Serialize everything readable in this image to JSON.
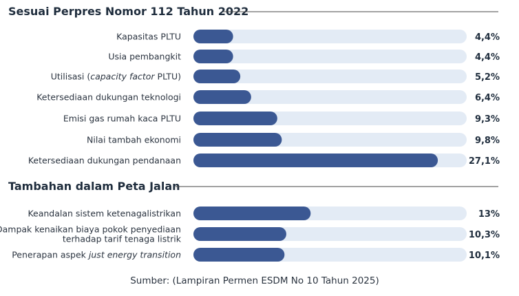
{
  "chart_data": {
    "type": "bar",
    "orientation": "horizontal",
    "unit": "%",
    "colors": {
      "bar": "#3b5893",
      "track": "#e3ebf5",
      "rule": "#444444"
    },
    "sections": [
      {
        "title": "Sesuai Perpres Nomor 112 Tahun 2022",
        "items": [
          {
            "label": [
              "Kapasitas PLTU"
            ],
            "value": 4.4,
            "display": "4,4%"
          },
          {
            "label": [
              "Usia pembangkit"
            ],
            "value": 4.4,
            "display": "4,4%"
          },
          {
            "label": [
              "Utilisasi (capacity factor PLTU)"
            ],
            "value": 5.2,
            "display": "5,2%"
          },
          {
            "label": [
              "Ketersediaan dukungan teknologi"
            ],
            "value": 6.4,
            "display": "6,4%"
          },
          {
            "label": [
              "Emisi gas rumah kaca PLTU"
            ],
            "value": 9.3,
            "display": "9,3%"
          },
          {
            "label": [
              "Nilai tambah ekonomi"
            ],
            "value": 9.8,
            "display": "9,8%"
          },
          {
            "label": [
              "Ketersediaan dukungan pendanaan"
            ],
            "value": 27.1,
            "display": "27,1%"
          }
        ]
      },
      {
        "title": "Tambahan dalam Peta Jalan",
        "items": [
          {
            "label": [
              "Keandalan sistem ketenagalistrikan"
            ],
            "value": 13,
            "display": "13%"
          },
          {
            "label": [
              "Dampak kenaikan biaya pokok penyediaan",
              "terhadap tarif tenaga listrik"
            ],
            "value": 10.3,
            "display": "10,3%"
          },
          {
            "label": [
              "Penerapan aspek just energy transition"
            ],
            "value": 10.1,
            "display": "10,1%"
          }
        ]
      }
    ],
    "source": "Sumber: (Lampiran Permen ESDM No 10 Tahun 2025)"
  }
}
